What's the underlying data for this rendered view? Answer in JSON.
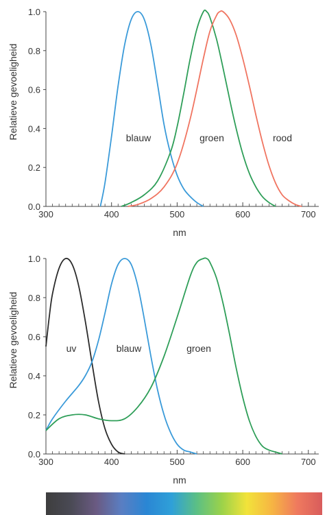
{
  "chart_data": [
    {
      "type": "line",
      "xlabel": "nm",
      "ylabel": "Relatieve gevoeligheid",
      "xlim": [
        300,
        720
      ],
      "ylim": [
        0,
        1.0
      ],
      "xticks": [
        "300",
        "400",
        "500",
        "600",
        "700"
      ],
      "yticks": [
        "0.0",
        "0.2",
        "0.4",
        "0.6",
        "0.8",
        "1.0"
      ],
      "grid": false,
      "series": [
        {
          "name": "blauw",
          "color": "#3a9ad9",
          "x": [
            383,
            390,
            400,
            410,
            420,
            430,
            440,
            450,
            460,
            470,
            480,
            490,
            500,
            510,
            520,
            530,
            540
          ],
          "y": [
            0.0,
            0.12,
            0.36,
            0.62,
            0.83,
            0.96,
            1.0,
            0.96,
            0.83,
            0.63,
            0.42,
            0.27,
            0.16,
            0.09,
            0.05,
            0.02,
            0.0
          ]
        },
        {
          "name": "groen",
          "color": "#2e9e58",
          "x": [
            415,
            430,
            450,
            470,
            490,
            500,
            510,
            520,
            530,
            540,
            545,
            550,
            560,
            570,
            580,
            590,
            600,
            610,
            620,
            630,
            640,
            650
          ],
          "y": [
            0.0,
            0.02,
            0.06,
            0.13,
            0.28,
            0.41,
            0.58,
            0.76,
            0.91,
            1.0,
            1.0,
            0.97,
            0.86,
            0.71,
            0.55,
            0.4,
            0.27,
            0.17,
            0.1,
            0.05,
            0.02,
            0.0
          ]
        },
        {
          "name": "rood",
          "color": "#f07460",
          "x": [
            425,
            440,
            460,
            480,
            500,
            520,
            540,
            550,
            560,
            565,
            570,
            580,
            590,
            600,
            610,
            620,
            630,
            640,
            650,
            660,
            670,
            680,
            690
          ],
          "y": [
            0.0,
            0.01,
            0.04,
            0.1,
            0.22,
            0.45,
            0.76,
            0.9,
            0.98,
            1.0,
            1.0,
            0.96,
            0.88,
            0.76,
            0.62,
            0.47,
            0.33,
            0.21,
            0.12,
            0.06,
            0.03,
            0.01,
            0.0
          ]
        }
      ]
    },
    {
      "type": "line",
      "xlabel": "nm",
      "ylabel": "Relatieve gevoeligheid",
      "xlim": [
        300,
        720
      ],
      "ylim": [
        0,
        1.0
      ],
      "xticks": [
        "300",
        "400",
        "500",
        "600",
        "700"
      ],
      "yticks": [
        "0.0",
        "0.2",
        "0.4",
        "0.6",
        "0.8",
        "1.0"
      ],
      "grid": false,
      "series": [
        {
          "name": "uv",
          "color": "#2b2b2b",
          "x": [
            300,
            305,
            310,
            320,
            330,
            340,
            350,
            360,
            370,
            380,
            390,
            400,
            410,
            420
          ],
          "y": [
            0.55,
            0.7,
            0.82,
            0.95,
            1.0,
            0.97,
            0.86,
            0.68,
            0.47,
            0.27,
            0.13,
            0.05,
            0.01,
            0.0
          ]
        },
        {
          "name": "blauw",
          "color": "#3a9ad9",
          "x": [
            300,
            310,
            330,
            350,
            360,
            370,
            380,
            390,
            400,
            410,
            420,
            430,
            440,
            450,
            460,
            470,
            480,
            490,
            500,
            510,
            520,
            530
          ],
          "y": [
            0.12,
            0.18,
            0.27,
            0.35,
            0.4,
            0.47,
            0.58,
            0.72,
            0.87,
            0.97,
            1.0,
            0.97,
            0.86,
            0.69,
            0.5,
            0.33,
            0.2,
            0.11,
            0.05,
            0.02,
            0.01,
            0.0
          ]
        },
        {
          "name": "groen",
          "color": "#2e9e58",
          "x": [
            300,
            320,
            340,
            360,
            380,
            400,
            420,
            440,
            460,
            480,
            500,
            520,
            530,
            540,
            545,
            550,
            560,
            570,
            580,
            590,
            600,
            610,
            620,
            630,
            640,
            650,
            660
          ],
          "y": [
            0.12,
            0.18,
            0.2,
            0.2,
            0.18,
            0.17,
            0.18,
            0.24,
            0.34,
            0.5,
            0.7,
            0.91,
            0.98,
            1.0,
            1.0,
            0.98,
            0.9,
            0.77,
            0.61,
            0.44,
            0.29,
            0.17,
            0.09,
            0.04,
            0.02,
            0.01,
            0.0
          ]
        }
      ]
    }
  ],
  "spectrum_bar": {
    "colors": [
      "#3e3e3e",
      "#4a4a55",
      "#6a5a82",
      "#5a7ec2",
      "#2a86d4",
      "#2fa0d8",
      "#5bbf85",
      "#9bd24a",
      "#f2e33a",
      "#f6b543",
      "#ef7a5e",
      "#d85c5c"
    ]
  }
}
